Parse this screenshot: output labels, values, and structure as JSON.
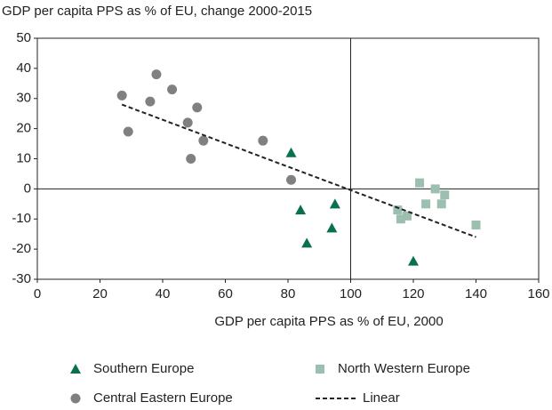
{
  "chart_data": {
    "type": "scatter",
    "title": "GDP per capita PPS as % of EU, change 2000-2015",
    "xlabel": "GDP per capita PPS as % of EU, 2000",
    "xlim": [
      0,
      160
    ],
    "xticks": [
      0,
      20,
      40,
      60,
      80,
      100,
      120,
      140,
      160
    ],
    "ylim": [
      -30,
      50
    ],
    "yticks": [
      -30,
      -20,
      -10,
      0,
      10,
      20,
      30,
      40,
      50
    ],
    "cross": {
      "x": 100,
      "y": 0
    },
    "series": [
      {
        "name": "Southern Europe",
        "color": "#0a7052",
        "marker": "triangle",
        "x": [
          81,
          84,
          86,
          95,
          94,
          120
        ],
        "values": [
          12,
          -7,
          -18,
          -5,
          -13,
          -24
        ]
      },
      {
        "name": "North Western Europe",
        "color": "#9dbfb0",
        "marker": "square",
        "x": [
          122,
          115,
          116,
          118,
          124,
          127,
          129,
          130,
          140
        ],
        "values": [
          2,
          -7,
          -10,
          -9,
          -5,
          0,
          -5,
          -2,
          -12
        ]
      },
      {
        "name": "Central Eastern Europe",
        "color": "#808080",
        "marker": "circle",
        "x": [
          27,
          29,
          36,
          38,
          43,
          48,
          49,
          51,
          53,
          72,
          81
        ],
        "values": [
          31,
          19,
          29,
          38,
          33,
          22,
          10,
          27,
          16,
          16,
          3
        ]
      },
      {
        "name": "Linear",
        "color": "#222222",
        "marker": "dashed-line",
        "x": [
          27,
          140
        ],
        "values": [
          28,
          -16
        ]
      }
    ]
  }
}
